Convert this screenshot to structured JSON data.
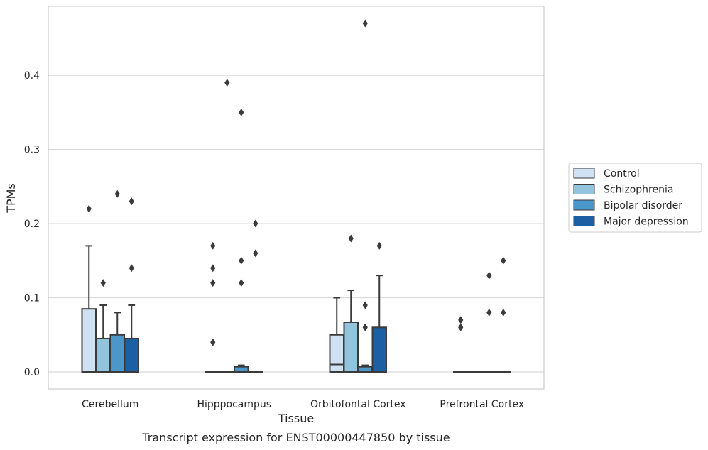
{
  "chart_data": {
    "type": "box",
    "title": "Transcript expression for ENST00000447850 by tissue",
    "xlabel": "Tissue",
    "ylabel": "TPMs",
    "ylim": [
      -0.023,
      0.493
    ],
    "yticks": [
      0.0,
      0.1,
      0.2,
      0.3,
      0.4
    ],
    "ytick_labels": [
      "0.0",
      "0.1",
      "0.2",
      "0.3",
      "0.4"
    ],
    "grid": "horizontal",
    "legend_position": "right",
    "categories": [
      "Cerebellum",
      "Hipppocampus",
      "Orbitofontal Cortex",
      "Prefrontal Cortex"
    ],
    "series": [
      {
        "name": "Control",
        "color": "#cfe1f2",
        "boxes": [
          {
            "q1": 0.0,
            "median": 0.0,
            "q3": 0.085,
            "whisker_low": 0.0,
            "whisker_high": 0.17,
            "outliers": [
              0.22
            ]
          },
          {
            "q1": 0.0,
            "median": 0.0,
            "q3": 0.0,
            "whisker_low": 0.0,
            "whisker_high": 0.0,
            "outliers": [
              0.04,
              0.12,
              0.14,
              0.17
            ]
          },
          {
            "q1": 0.0,
            "median": 0.01,
            "q3": 0.05,
            "whisker_low": 0.0,
            "whisker_high": 0.1,
            "outliers": []
          },
          {
            "q1": 0.0,
            "median": 0.0,
            "q3": 0.0,
            "whisker_low": 0.0,
            "whisker_high": 0.0,
            "outliers": [
              0.06,
              0.07
            ]
          }
        ]
      },
      {
        "name": "Schizophrenia",
        "color": "#93c4de",
        "boxes": [
          {
            "q1": 0.0,
            "median": 0.0,
            "q3": 0.045,
            "whisker_low": 0.0,
            "whisker_high": 0.09,
            "outliers": [
              0.12
            ]
          },
          {
            "q1": 0.0,
            "median": 0.0,
            "q3": 0.0,
            "whisker_low": 0.0,
            "whisker_high": 0.0,
            "outliers": [
              0.39
            ]
          },
          {
            "q1": 0.0,
            "median": 0.0,
            "q3": 0.067,
            "whisker_low": 0.0,
            "whisker_high": 0.11,
            "outliers": [
              0.18
            ]
          },
          {
            "q1": 0.0,
            "median": 0.0,
            "q3": 0.0,
            "whisker_low": 0.0,
            "whisker_high": 0.0,
            "outliers": []
          }
        ]
      },
      {
        "name": "Bipolar disorder",
        "color": "#4b97c9",
        "boxes": [
          {
            "q1": 0.0,
            "median": 0.0,
            "q3": 0.05,
            "whisker_low": 0.0,
            "whisker_high": 0.08,
            "outliers": [
              0.24
            ]
          },
          {
            "q1": 0.0,
            "median": 0.0,
            "q3": 0.007,
            "whisker_low": 0.0,
            "whisker_high": 0.009,
            "outliers": [
              0.12,
              0.15,
              0.35
            ]
          },
          {
            "q1": 0.0,
            "median": 0.0,
            "q3": 0.007,
            "whisker_low": 0.0,
            "whisker_high": 0.009,
            "outliers": [
              0.06,
              0.09,
              0.47
            ]
          },
          {
            "q1": 0.0,
            "median": 0.0,
            "q3": 0.0,
            "whisker_low": 0.0,
            "whisker_high": 0.0,
            "outliers": [
              0.08,
              0.13
            ]
          }
        ]
      },
      {
        "name": "Major depression",
        "color": "#1c5fa3",
        "boxes": [
          {
            "q1": 0.0,
            "median": 0.0,
            "q3": 0.045,
            "whisker_low": 0.0,
            "whisker_high": 0.09,
            "outliers": [
              0.14,
              0.23
            ]
          },
          {
            "q1": 0.0,
            "median": 0.0,
            "q3": 0.0,
            "whisker_low": 0.0,
            "whisker_high": 0.0,
            "outliers": [
              0.16,
              0.2
            ]
          },
          {
            "q1": 0.0,
            "median": 0.0,
            "q3": 0.06,
            "whisker_low": 0.0,
            "whisker_high": 0.13,
            "outliers": [
              0.17
            ]
          },
          {
            "q1": 0.0,
            "median": 0.0,
            "q3": 0.0,
            "whisker_low": 0.0,
            "whisker_high": 0.0,
            "outliers": [
              0.08,
              0.15
            ]
          }
        ]
      }
    ]
  }
}
